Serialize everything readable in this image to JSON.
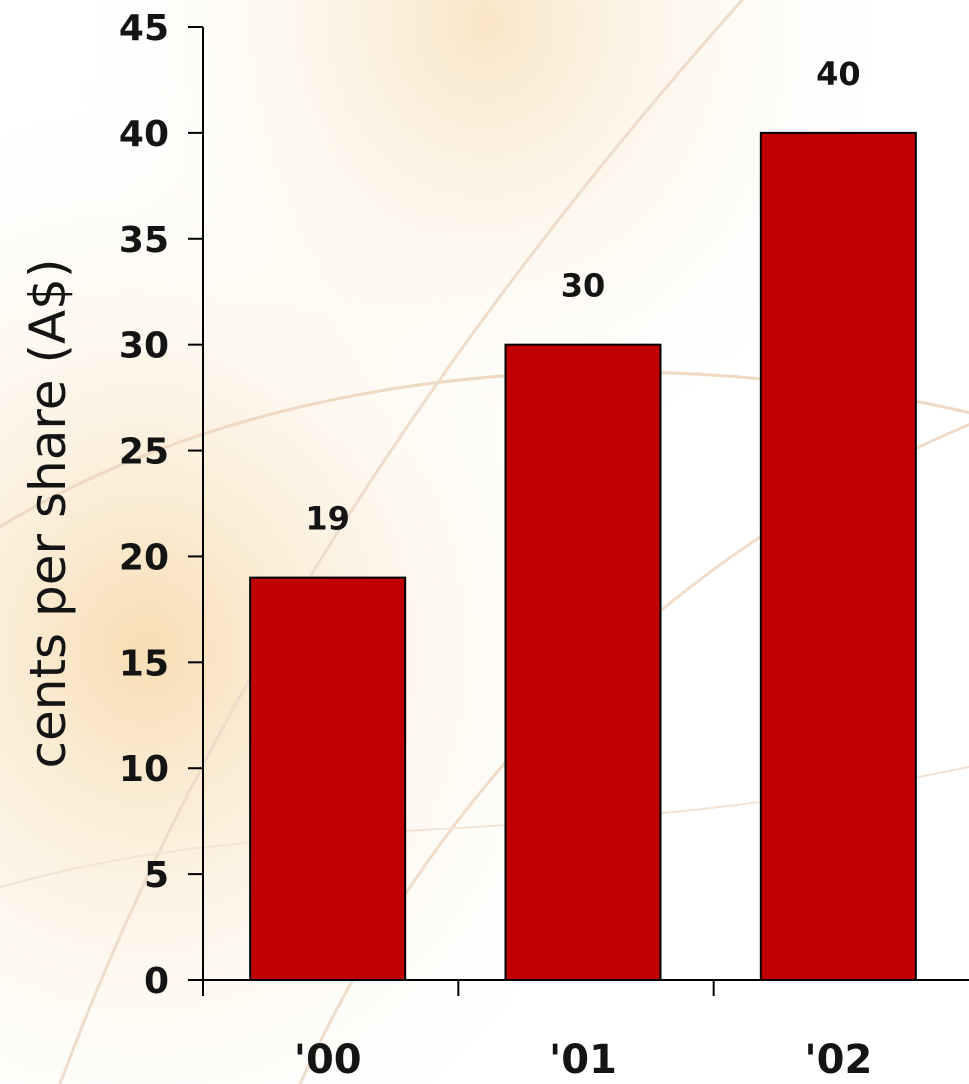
{
  "chart_data": {
    "type": "bar",
    "categories": [
      "'00",
      "'01",
      "'02"
    ],
    "values": [
      19,
      30,
      40
    ],
    "data_labels": [
      "19",
      "30",
      "40"
    ],
    "title": "",
    "xlabel": "",
    "ylabel": "cents per share (A$)",
    "ylim": [
      0,
      45
    ],
    "yticks": [
      "0",
      "5",
      "10",
      "15",
      "20",
      "25",
      "30",
      "35",
      "40",
      "45"
    ],
    "grid": false,
    "legend": "none",
    "bar_color": "#c00000",
    "bar_edge_color": "#000000"
  }
}
